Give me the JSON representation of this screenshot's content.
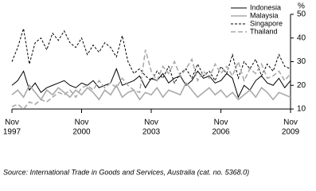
{
  "chart_data": {
    "type": "line",
    "y_unit": "%",
    "source": "Source: International Trade in Goods and Services, Australia (cat. no. 5368.0)",
    "x": [
      "1997-11",
      "1998-02",
      "1998-05",
      "1998-08",
      "1998-11",
      "1999-02",
      "1999-05",
      "1999-08",
      "1999-11",
      "2000-02",
      "2000-05",
      "2000-08",
      "2000-11",
      "2001-02",
      "2001-05",
      "2001-08",
      "2001-11",
      "2002-02",
      "2002-05",
      "2002-08",
      "2002-11",
      "2003-02",
      "2003-05",
      "2003-08",
      "2003-11",
      "2004-02",
      "2004-05",
      "2004-08",
      "2004-11",
      "2005-02",
      "2005-05",
      "2005-08",
      "2005-11",
      "2006-02",
      "2006-05",
      "2006-08",
      "2006-11",
      "2007-02",
      "2007-05",
      "2007-08",
      "2007-11",
      "2008-02",
      "2008-05",
      "2008-08",
      "2008-11",
      "2009-02",
      "2009-05",
      "2009-08",
      "2009-11"
    ],
    "xlim": [
      "1997-11",
      "2009-11"
    ],
    "xticks": [
      {
        "value": "1997-11",
        "label": [
          "Nov",
          "1997"
        ]
      },
      {
        "value": "2000-11",
        "label": [
          "Nov",
          "2000"
        ]
      },
      {
        "value": "2003-11",
        "label": [
          "Nov",
          "2003"
        ]
      },
      {
        "value": "2006-11",
        "label": [
          "Nov",
          "2006"
        ]
      },
      {
        "value": "2009-11",
        "label": [
          "Nov",
          "2009"
        ]
      }
    ],
    "ylim": [
      10,
      50
    ],
    "yticks": [
      10,
      20,
      30,
      40,
      50
    ],
    "series": [
      {
        "name": "Indonesia",
        "color": "#000000",
        "style": "solid",
        "values": [
          20,
          22,
          26,
          18,
          21,
          17,
          19,
          20,
          21,
          22,
          20,
          19,
          21,
          20,
          22,
          19,
          20,
          21,
          27,
          20,
          21,
          22,
          24,
          19,
          23,
          22,
          25,
          21,
          23,
          24,
          20,
          22,
          26,
          23,
          24,
          21,
          22,
          25,
          23,
          15,
          20,
          18,
          22,
          24,
          21,
          20,
          23,
          19,
          22
        ]
      },
      {
        "name": "Malaysia",
        "color": "#aaaaaa",
        "style": "solid",
        "values": [
          16,
          18,
          15,
          20,
          17,
          14,
          18,
          16,
          19,
          17,
          15,
          18,
          16,
          19,
          17,
          14,
          18,
          16,
          20,
          15,
          17,
          18,
          14,
          17,
          16,
          19,
          15,
          18,
          17,
          16,
          21,
          18,
          15,
          17,
          19,
          16,
          18,
          15,
          17,
          14,
          16,
          18,
          15,
          19,
          17,
          14,
          17,
          16,
          15
        ]
      },
      {
        "name": "Singapore",
        "color": "#000000",
        "style": "dashed",
        "values": [
          30,
          36,
          44,
          29,
          38,
          40,
          35,
          42,
          39,
          43,
          38,
          36,
          40,
          33,
          37,
          34,
          38,
          36,
          32,
          41,
          30,
          25,
          27,
          24,
          22,
          26,
          23,
          28,
          21,
          25,
          27,
          23,
          29,
          24,
          26,
          22,
          28,
          25,
          33,
          23,
          30,
          27,
          31,
          24,
          29,
          26,
          33,
          28,
          27
        ]
      },
      {
        "name": "Thailand",
        "color": "#aaaaaa",
        "style": "dashed",
        "values": [
          11,
          12,
          10,
          13,
          12,
          14,
          13,
          15,
          17,
          16,
          18,
          15,
          19,
          20,
          18,
          22,
          19,
          21,
          19,
          23,
          20,
          18,
          17,
          35,
          26,
          22,
          28,
          25,
          30,
          24,
          27,
          31,
          22,
          26,
          23,
          29,
          25,
          28,
          24,
          30,
          22,
          27,
          25,
          29,
          23,
          24,
          26,
          22,
          25
        ]
      }
    ]
  }
}
